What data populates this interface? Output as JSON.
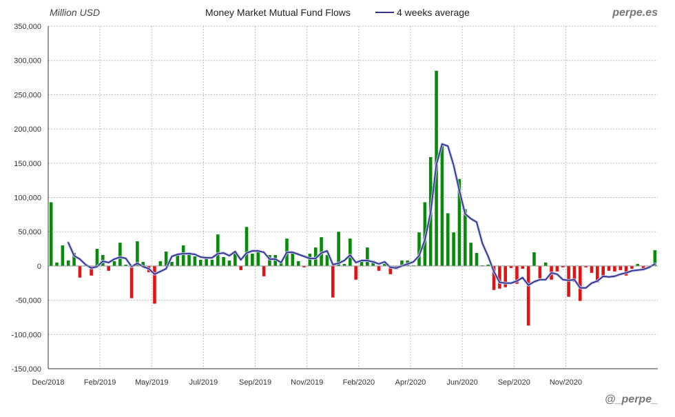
{
  "header": {
    "unit_label": "Million USD",
    "brand_top": "perpe.es",
    "brand_bottom": "@_perpe_"
  },
  "chart_data": {
    "type": "bar",
    "title": "Money Market Mutual Fund Flows",
    "xlabel": "",
    "ylabel": "Million USD",
    "ylim": [
      -150000,
      350000
    ],
    "y_ticks": [
      -150000,
      -100000,
      -50000,
      0,
      50000,
      100000,
      150000,
      200000,
      250000,
      300000,
      350000
    ],
    "y_tick_labels": [
      "-150,000",
      "-100,000",
      "-50,000",
      "0",
      "50,000",
      "100,000",
      "150,000",
      "200,000",
      "250,000",
      "300,000",
      "350,000"
    ],
    "x_tick_labels": [
      "Dec/2018",
      "Feb/2019",
      "May/2019",
      "Jul/2019",
      "Sep/2019",
      "Nov/2019",
      "Feb/2020",
      "Apr/2020",
      "Jun/2020",
      "Sep/2020",
      "Nov/2020"
    ],
    "x_tick_index": [
      0,
      9,
      18,
      27,
      36,
      45,
      54,
      63,
      72,
      81,
      90
    ],
    "grid": true,
    "legend": {
      "position": "top",
      "entries": [
        "4 weeks average"
      ]
    },
    "colors": {
      "positive": "#0a8a0a",
      "negative": "#e11414",
      "average": "#33338a",
      "grid": "#bbbbbb",
      "axis": "#333333",
      "brand": "#777777"
    },
    "series": [
      {
        "name": "weekly_flows",
        "values": [
          93000,
          5000,
          30000,
          8000,
          19000,
          -17000,
          1000,
          -14000,
          25000,
          16000,
          -7000,
          7000,
          34000,
          2000,
          -47000,
          36000,
          6000,
          -9000,
          -55000,
          7000,
          21000,
          6000,
          16000,
          30000,
          20000,
          14000,
          9000,
          13000,
          9000,
          46000,
          13000,
          8000,
          22000,
          -6000,
          57000,
          18000,
          22000,
          -15000,
          16000,
          16000,
          6000,
          40000,
          19000,
          7000,
          -2000,
          18000,
          27000,
          42000,
          16000,
          -46000,
          50000,
          3000,
          40000,
          -20000,
          6000,
          27000,
          8000,
          -7000,
          3000,
          -12000,
          -5000,
          8000,
          8000,
          1000,
          49000,
          93000,
          159000,
          285000,
          175000,
          77000,
          49000,
          127000,
          83000,
          34000,
          19000,
          1000,
          2000,
          -35000,
          -33000,
          -31000,
          -3000,
          -26000,
          -4000,
          -87000,
          20000,
          -18000,
          5000,
          -20000,
          -8000,
          -2000,
          -45000,
          -23000,
          -51000,
          -2000,
          -10000,
          -24000,
          -17000,
          -7000,
          -8000,
          -6000,
          -14000,
          -4000,
          3000,
          -6000,
          -3000,
          23000
        ]
      },
      {
        "name": "4 weeks average",
        "values": [
          null,
          null,
          null,
          34000,
          15000,
          10000,
          2000,
          -3000,
          -1000,
          7000,
          5000,
          10000,
          13000,
          11000,
          -1000,
          4000,
          -1000,
          -4000,
          -12000,
          -8000,
          -4000,
          14000,
          17000,
          18000,
          18000,
          17000,
          13000,
          12000,
          12000,
          18000,
          19000,
          15000,
          21000,
          9000,
          19000,
          22000,
          22000,
          20000,
          10000,
          10000,
          5000,
          20000,
          20000,
          17000,
          14000,
          11000,
          11000,
          19000,
          22000,
          2000,
          4000,
          8000,
          16000,
          5000,
          8000,
          8000,
          6000,
          3000,
          6000,
          -2000,
          -3000,
          0,
          3000,
          6000,
          15000,
          38000,
          78000,
          148000,
          178000,
          175000,
          147000,
          110000,
          76000,
          69000,
          64000,
          33000,
          14000,
          -8000,
          -24000,
          -25000,
          -25000,
          -22000,
          -17000,
          -28000,
          -23000,
          -20000,
          -20000,
          -10000,
          -12000,
          -20000,
          -21000,
          -20000,
          -32000,
          -32000,
          -25000,
          -22000,
          -15000,
          -16000,
          -15000,
          -12000,
          -10000,
          -7000,
          -6000,
          -5000,
          -2000,
          3000
        ]
      }
    ]
  }
}
